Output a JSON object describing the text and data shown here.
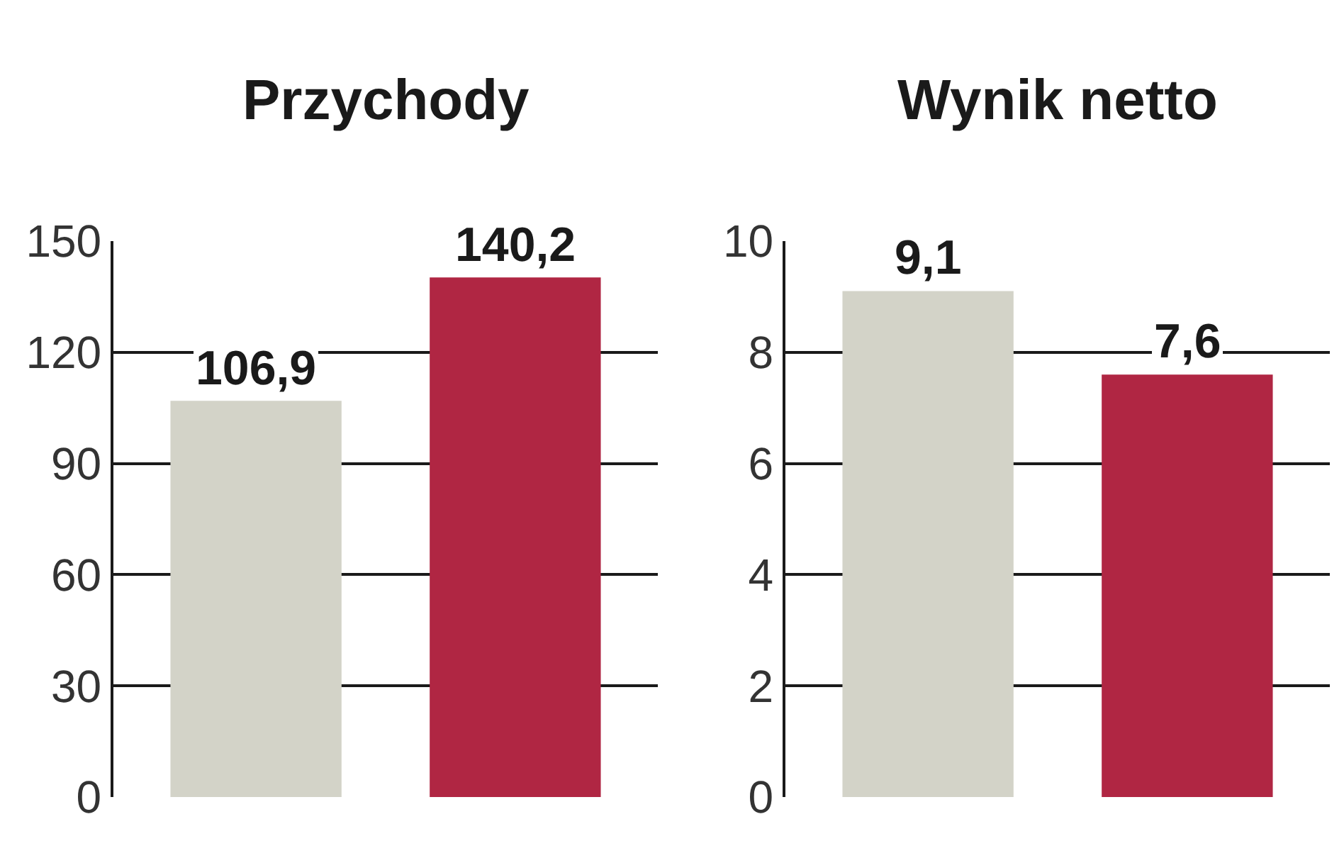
{
  "chart_data": [
    {
      "type": "bar",
      "title": "Przychody",
      "categories": [
        null,
        null
      ],
      "values": [
        106.9,
        140.2
      ],
      "colors": [
        "#d3d3c8",
        "#b02643"
      ],
      "ylim": [
        0,
        150
      ],
      "yticks": [
        0,
        30,
        60,
        90,
        120,
        150
      ],
      "grid": "y",
      "data_labels": true,
      "value_labels": [
        "106,9",
        "140,2"
      ]
    },
    {
      "type": "bar",
      "title": "Wynik netto",
      "categories": [
        null,
        null
      ],
      "values": [
        9.1,
        7.6
      ],
      "colors": [
        "#d3d3c8",
        "#b02643"
      ],
      "ylim": [
        0,
        10
      ],
      "yticks": [
        0,
        2,
        4,
        6,
        8,
        10
      ],
      "grid": "y",
      "data_labels": true,
      "value_labels": [
        "9,1",
        "7,6"
      ]
    }
  ]
}
